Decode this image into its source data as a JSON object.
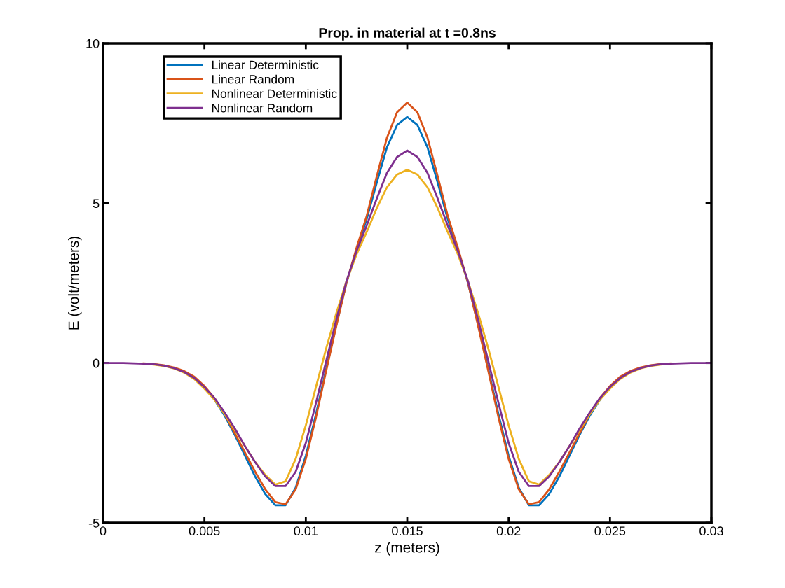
{
  "chart_data": {
    "type": "line",
    "title": "Prop. in material at t =0.8ns",
    "xlabel": "z (meters)",
    "ylabel": "E (volt/meters)",
    "x": [
      0,
      0.0005,
      0.001,
      0.0015,
      0.002,
      0.0025,
      0.003,
      0.0035,
      0.004,
      0.0045,
      0.005,
      0.0055,
      0.006,
      0.0065,
      0.007,
      0.0075,
      0.008,
      0.0085,
      0.009,
      0.0095,
      0.01,
      0.0105,
      0.011,
      0.0115,
      0.012,
      0.0125,
      0.013,
      0.0135,
      0.014,
      0.0145,
      0.015,
      0.0155,
      0.016,
      0.0165,
      0.017,
      0.0175,
      0.018,
      0.0185,
      0.019,
      0.0195,
      0.02,
      0.0205,
      0.021,
      0.0215,
      0.022,
      0.0225,
      0.023,
      0.0235,
      0.024,
      0.0245,
      0.025,
      0.0255,
      0.026,
      0.0265,
      0.027,
      0.0275,
      0.028,
      0.0285,
      0.029,
      0.0295,
      0.03
    ],
    "series": [
      {
        "name": "Linear Deterministic",
        "color": "#0072bd",
        "values": [
          null,
          null,
          null,
          null,
          null,
          null,
          null,
          null,
          null,
          null,
          -0.75,
          -1.15,
          -1.65,
          -2.25,
          -2.9,
          -3.55,
          -4.1,
          -4.45,
          -4.45,
          -3.9,
          -2.9,
          -1.6,
          -0.2,
          1.2,
          2.5,
          3.55,
          4.5,
          5.65,
          6.75,
          7.45,
          7.7,
          7.45,
          6.75,
          5.65,
          4.5,
          3.55,
          2.5,
          1.2,
          -0.2,
          -1.6,
          -2.9,
          -3.9,
          -4.45,
          -4.45,
          -4.1,
          -3.55,
          -2.9,
          -2.25,
          -1.65,
          -1.15,
          -0.75,
          null,
          null,
          null,
          null,
          null,
          null,
          null,
          null,
          null,
          null
        ]
      },
      {
        "name": "Linear Random",
        "color": "#d95319",
        "values": [
          null,
          null,
          null,
          null,
          -0.01,
          -0.03,
          -0.07,
          -0.14,
          -0.25,
          -0.43,
          -0.72,
          -1.1,
          -1.6,
          -2.2,
          -2.8,
          -3.4,
          -3.95,
          -4.35,
          -4.42,
          -3.95,
          -3.0,
          -1.7,
          -0.25,
          1.15,
          2.5,
          3.6,
          4.6,
          5.85,
          7.05,
          7.85,
          8.15,
          7.85,
          7.05,
          5.85,
          4.6,
          3.6,
          2.5,
          1.15,
          -0.25,
          -1.7,
          -3.0,
          -3.95,
          -4.42,
          -4.35,
          -3.95,
          -3.4,
          -2.8,
          -2.2,
          -1.6,
          -1.1,
          -0.72,
          -0.43,
          -0.25,
          -0.14,
          -0.07,
          -0.03,
          -0.01,
          null,
          null,
          null,
          null
        ]
      },
      {
        "name": "Nonlinear Deterministic",
        "color": "#edb120",
        "values": [
          null,
          null,
          null,
          null,
          -0.02,
          -0.05,
          -0.09,
          -0.17,
          -0.3,
          -0.5,
          -0.8,
          -1.15,
          -1.6,
          -2.1,
          -2.6,
          -3.1,
          -3.5,
          -3.8,
          -3.7,
          -3.0,
          -1.95,
          -0.75,
          0.45,
          1.55,
          2.55,
          3.4,
          4.1,
          4.85,
          5.5,
          5.9,
          6.05,
          5.9,
          5.5,
          4.85,
          4.1,
          3.4,
          2.55,
          1.55,
          0.45,
          -0.75,
          -1.95,
          -3.0,
          -3.7,
          -3.8,
          -3.5,
          -3.1,
          -2.6,
          -2.1,
          -1.6,
          -1.15,
          -0.8,
          -0.5,
          -0.3,
          -0.17,
          -0.09,
          -0.05,
          -0.02,
          null,
          null,
          null,
          null
        ]
      },
      {
        "name": "Nonlinear Random",
        "color": "#7e2f8e",
        "values": [
          0,
          0,
          0,
          -0.01,
          -0.02,
          -0.04,
          -0.08,
          -0.16,
          -0.28,
          -0.47,
          -0.75,
          -1.1,
          -1.55,
          -2.05,
          -2.6,
          -3.1,
          -3.55,
          -3.85,
          -3.85,
          -3.4,
          -2.5,
          -1.25,
          0.05,
          1.35,
          2.55,
          3.5,
          4.3,
          5.15,
          5.95,
          6.45,
          6.65,
          6.45,
          5.95,
          5.15,
          4.3,
          3.5,
          2.55,
          1.35,
          0.05,
          -1.25,
          -2.5,
          -3.4,
          -3.85,
          -3.85,
          -3.55,
          -3.1,
          -2.6,
          -2.05,
          -1.55,
          -1.1,
          -0.75,
          -0.47,
          -0.28,
          -0.16,
          -0.08,
          -0.04,
          -0.02,
          -0.01,
          0,
          0,
          0
        ]
      }
    ],
    "xlim": [
      0,
      0.03
    ],
    "xticks": [
      0,
      0.005,
      0.01,
      0.015,
      0.02,
      0.025,
      0.03
    ],
    "ylim": [
      -5,
      10
    ],
    "yticks": [
      -5,
      0,
      5,
      10
    ],
    "grid": false,
    "legend": "top left",
    "marker": "none",
    "line_style": "solid"
  }
}
